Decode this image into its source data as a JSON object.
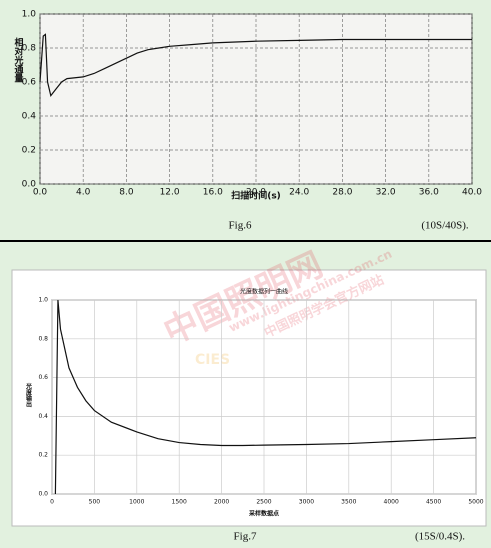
{
  "chart_data": [
    {
      "type": "line",
      "ylabel": "相对光通量",
      "xlabel": "扫描时间(s)",
      "caption": "Fig.6",
      "caption_note": "(10S/40S).",
      "x": [
        0,
        0.3,
        0.5,
        0.7,
        1.0,
        1.5,
        2,
        2.5,
        4,
        5,
        6,
        7,
        8,
        9,
        10,
        11,
        12,
        14,
        16,
        20,
        24,
        28,
        32,
        36,
        40
      ],
      "series": [
        {
          "color": "#111111",
          "values": [
            0.6,
            0.87,
            0.88,
            0.6,
            0.52,
            0.56,
            0.6,
            0.62,
            0.63,
            0.65,
            0.68,
            0.71,
            0.74,
            0.77,
            0.79,
            0.8,
            0.81,
            0.82,
            0.83,
            0.84,
            0.845,
            0.85,
            0.85,
            0.85,
            0.85
          ]
        }
      ],
      "xlim": [
        0,
        40
      ],
      "ylim": [
        0,
        1
      ],
      "xticks": [
        {
          "value": 0,
          "label": "0.0"
        },
        {
          "value": 4,
          "label": "4.0"
        },
        {
          "value": 8,
          "label": "8.0"
        },
        {
          "value": 12,
          "label": "12.0"
        },
        {
          "value": 16,
          "label": "16.0"
        },
        {
          "value": 20,
          "label": "20.0"
        },
        {
          "value": 24,
          "label": "24.0"
        },
        {
          "value": 28,
          "label": "28.0"
        },
        {
          "value": 32,
          "label": "32.0"
        },
        {
          "value": 36,
          "label": "36.0"
        },
        {
          "value": 40,
          "label": "40.0"
        }
      ],
      "yticks": [
        {
          "value": 0,
          "label": "0.0"
        },
        {
          "value": 0.2,
          "label": "0.2"
        },
        {
          "value": 0.4,
          "label": "0.4"
        },
        {
          "value": 0.6,
          "label": "0.6"
        },
        {
          "value": 0.8,
          "label": "0.8"
        },
        {
          "value": 1,
          "label": "1.0"
        }
      ],
      "grid": true,
      "grid_style": "dashed"
    },
    {
      "type": "line",
      "title": "光度数据列一曲线",
      "ylabel": "光度输出",
      "xlabel": "采样数据点",
      "caption": "Fig.7",
      "caption_note": "(15S/0.4S).",
      "x": [
        40,
        70,
        100,
        200,
        300,
        400,
        500,
        700,
        1000,
        1250,
        1500,
        1750,
        2000,
        2250,
        2500,
        3000,
        3500,
        4000,
        4500,
        5000
      ],
      "series": [
        {
          "color": "#111111",
          "values": [
            0.0,
            1.0,
            0.85,
            0.65,
            0.55,
            0.48,
            0.43,
            0.37,
            0.32,
            0.285,
            0.265,
            0.255,
            0.25,
            0.25,
            0.252,
            0.255,
            0.26,
            0.27,
            0.28,
            0.29
          ]
        }
      ],
      "xlim": [
        0,
        5000
      ],
      "ylim": [
        0,
        1
      ],
      "xticks": [
        0,
        500,
        1000,
        1500,
        2000,
        2500,
        3000,
        3500,
        4000,
        4500,
        5000
      ],
      "yticks": [
        {
          "value": 0,
          "label": "0.0"
        },
        {
          "value": 0.2,
          "label": "0.2"
        },
        {
          "value": 0.4,
          "label": "0.4"
        },
        {
          "value": 0.6,
          "label": "0.6"
        },
        {
          "value": 0.8,
          "label": "0.8"
        },
        {
          "value": 1,
          "label": "1.0"
        }
      ],
      "grid": true,
      "grid_style": "solid"
    }
  ],
  "watermark": {
    "site": "中国照明网",
    "url": "www.lightingchina.com.cn",
    "org": "中国照明学会官方网站",
    "logo": "CIES"
  }
}
